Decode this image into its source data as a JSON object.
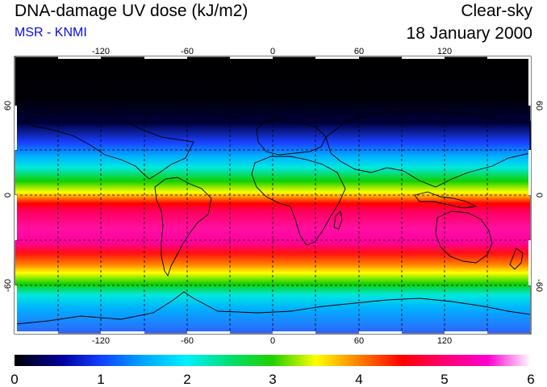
{
  "header": {
    "title": "DNA-damage UV dose (kJ/m2)",
    "subtitle": "MSR - KNMI",
    "condition": "Clear-sky",
    "date": "18 January 2000"
  },
  "map": {
    "longitude_ticks": [
      "-120",
      "-60",
      "0",
      "60",
      "120"
    ],
    "latitude_ticks_left": [
      "60",
      "0",
      "-60"
    ],
    "latitude_ticks_right": [
      "60",
      "0",
      "-60"
    ],
    "colors": {
      "background": "#000000",
      "coastline": "#000000",
      "gridline": "#000000"
    }
  },
  "colorbar": {
    "min": 0,
    "max": 6,
    "labels": [
      "0",
      "1",
      "2",
      "3",
      "4",
      "5",
      "6"
    ],
    "stops": [
      {
        "value": 0.0,
        "color": "#000000"
      },
      {
        "value": 0.55,
        "color": "#0000a0"
      },
      {
        "value": 1.0,
        "color": "#1040ff"
      },
      {
        "value": 1.5,
        "color": "#00a8ff"
      },
      {
        "value": 2.0,
        "color": "#00f0ff"
      },
      {
        "value": 2.5,
        "color": "#00e070"
      },
      {
        "value": 3.0,
        "color": "#22d000"
      },
      {
        "value": 3.5,
        "color": "#ffff00"
      },
      {
        "value": 4.0,
        "color": "#ff8000"
      },
      {
        "value": 4.5,
        "color": "#ff0000"
      },
      {
        "value": 5.0,
        "color": "#ff0070"
      },
      {
        "value": 5.5,
        "color": "#ff00d0"
      },
      {
        "value": 6.0,
        "color": "#ffffff"
      }
    ]
  }
}
